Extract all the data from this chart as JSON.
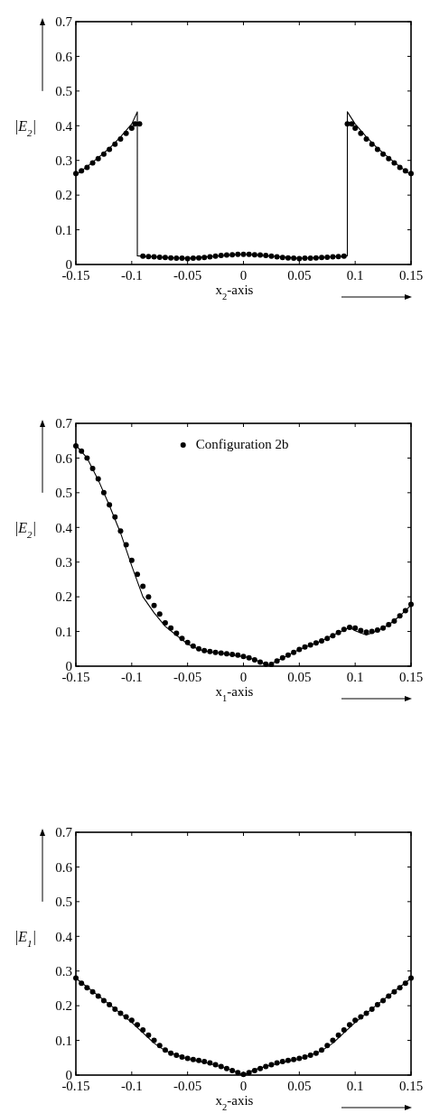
{
  "chart_data": [
    {
      "type": "line",
      "xlabel": "x$_{2}$-axis",
      "ylabel": "|E$_{2}$|",
      "xlim": [
        -0.15,
        0.15
      ],
      "ylim": [
        0,
        0.7
      ],
      "xticks": [
        -0.15,
        -0.1,
        -0.05,
        0,
        0.05,
        0.1,
        0.15
      ],
      "yticks": [
        0,
        0.1,
        0.2,
        0.3,
        0.4,
        0.5,
        0.6,
        0.7
      ],
      "grid": false,
      "legend": false,
      "series": [
        {
          "type": "line",
          "color": "#000000",
          "line_style": "solid",
          "x": [
            -0.15,
            -0.14,
            -0.13,
            -0.12,
            -0.11,
            -0.1,
            -0.095,
            -0.095,
            -0.07,
            -0.05,
            -0.025,
            0,
            0.025,
            0.05,
            0.07,
            0.093,
            0.093,
            0.1,
            0.11,
            0.12,
            0.13,
            0.14,
            0.15
          ],
          "values": [
            0.258,
            0.282,
            0.308,
            0.335,
            0.368,
            0.405,
            0.44,
            0.025,
            0.02,
            0.018,
            0.024,
            0.03,
            0.024,
            0.018,
            0.02,
            0.025,
            0.44,
            0.405,
            0.368,
            0.335,
            0.308,
            0.282,
            0.258
          ]
        },
        {
          "type": "scatter",
          "color": "#000000",
          "marker": "circle",
          "x": [
            -0.15,
            -0.145,
            -0.14,
            -0.135,
            -0.13,
            -0.125,
            -0.12,
            -0.115,
            -0.11,
            -0.105,
            -0.1,
            -0.097,
            -0.093,
            -0.09,
            -0.085,
            -0.08,
            -0.075,
            -0.07,
            -0.065,
            -0.06,
            -0.055,
            -0.05,
            -0.045,
            -0.04,
            -0.035,
            -0.03,
            -0.025,
            -0.02,
            -0.015,
            -0.01,
            -0.005,
            0,
            0.005,
            0.01,
            0.015,
            0.02,
            0.025,
            0.03,
            0.035,
            0.04,
            0.045,
            0.05,
            0.055,
            0.06,
            0.065,
            0.07,
            0.075,
            0.08,
            0.085,
            0.09,
            0.093,
            0.097,
            0.1,
            0.105,
            0.11,
            0.115,
            0.12,
            0.125,
            0.13,
            0.135,
            0.14,
            0.145,
            0.15
          ],
          "values": [
            0.262,
            0.27,
            0.28,
            0.293,
            0.305,
            0.318,
            0.332,
            0.347,
            0.362,
            0.378,
            0.393,
            0.405,
            0.405,
            0.024,
            0.023,
            0.022,
            0.021,
            0.02,
            0.019,
            0.018,
            0.018,
            0.017,
            0.018,
            0.019,
            0.02,
            0.022,
            0.024,
            0.026,
            0.027,
            0.028,
            0.029,
            0.029,
            0.029,
            0.028,
            0.027,
            0.026,
            0.024,
            0.022,
            0.02,
            0.019,
            0.018,
            0.017,
            0.018,
            0.018,
            0.019,
            0.02,
            0.021,
            0.022,
            0.023,
            0.024,
            0.405,
            0.405,
            0.393,
            0.378,
            0.362,
            0.347,
            0.332,
            0.318,
            0.305,
            0.293,
            0.28,
            0.27,
            0.262
          ]
        }
      ]
    },
    {
      "type": "line",
      "xlabel": "x$_{1}$-axis",
      "ylabel": "|E$_{2}$|",
      "xlim": [
        -0.15,
        0.15
      ],
      "ylim": [
        0,
        0.7
      ],
      "xticks": [
        -0.15,
        -0.1,
        -0.05,
        0,
        0.05,
        0.1,
        0.15
      ],
      "yticks": [
        0,
        0.1,
        0.2,
        0.3,
        0.4,
        0.5,
        0.6,
        0.7
      ],
      "grid": false,
      "legend": "top",
      "series": [
        {
          "type": "line",
          "color": "#000000",
          "line_style": "solid",
          "x": [
            -0.15,
            -0.14,
            -0.13,
            -0.12,
            -0.11,
            -0.1,
            -0.09,
            -0.08,
            -0.07,
            -0.06,
            -0.05,
            -0.04,
            -0.03,
            -0.02,
            -0.01,
            0,
            0.01,
            0.02,
            0.022,
            0.03,
            0.04,
            0.05,
            0.06,
            0.07,
            0.08,
            0.09,
            0.095,
            0.1,
            0.11,
            0.12,
            0.13,
            0.14,
            0.15
          ],
          "values": [
            0.637,
            0.6,
            0.537,
            0.463,
            0.384,
            0.289,
            0.2,
            0.154,
            0.115,
            0.089,
            0.064,
            0.048,
            0.041,
            0.037,
            0.032,
            0.028,
            0.019,
            0.006,
            0.002,
            0.015,
            0.032,
            0.048,
            0.061,
            0.073,
            0.089,
            0.104,
            0.112,
            0.102,
            0.09,
            0.102,
            0.119,
            0.145,
            0.176
          ]
        },
        {
          "type": "scatter",
          "name": "Configuration 2b",
          "color": "#000000",
          "marker": "circle",
          "x": [
            -0.15,
            -0.145,
            -0.14,
            -0.135,
            -0.13,
            -0.125,
            -0.12,
            -0.115,
            -0.11,
            -0.105,
            -0.1,
            -0.095,
            -0.09,
            -0.085,
            -0.08,
            -0.075,
            -0.07,
            -0.065,
            -0.06,
            -0.055,
            -0.05,
            -0.045,
            -0.04,
            -0.035,
            -0.03,
            -0.025,
            -0.02,
            -0.015,
            -0.01,
            -0.005,
            0,
            0.005,
            0.01,
            0.015,
            0.02,
            0.025,
            0.03,
            0.035,
            0.04,
            0.045,
            0.05,
            0.055,
            0.06,
            0.065,
            0.07,
            0.075,
            0.08,
            0.085,
            0.09,
            0.095,
            0.1,
            0.105,
            0.11,
            0.115,
            0.12,
            0.125,
            0.13,
            0.135,
            0.14,
            0.145,
            0.15
          ],
          "values": [
            0.635,
            0.62,
            0.6,
            0.57,
            0.54,
            0.5,
            0.465,
            0.43,
            0.39,
            0.35,
            0.305,
            0.265,
            0.23,
            0.2,
            0.175,
            0.15,
            0.125,
            0.11,
            0.095,
            0.08,
            0.068,
            0.058,
            0.05,
            0.045,
            0.042,
            0.04,
            0.038,
            0.036,
            0.034,
            0.032,
            0.028,
            0.024,
            0.018,
            0.012,
            0.006,
            0.005,
            0.015,
            0.024,
            0.032,
            0.04,
            0.048,
            0.055,
            0.061,
            0.067,
            0.073,
            0.08,
            0.088,
            0.097,
            0.106,
            0.112,
            0.11,
            0.103,
            0.098,
            0.1,
            0.104,
            0.11,
            0.12,
            0.13,
            0.145,
            0.16,
            0.178
          ]
        }
      ]
    },
    {
      "type": "line",
      "xlabel": "x$_{2}$-axis",
      "ylabel": "|E$_{1}$|",
      "xlim": [
        -0.15,
        0.15
      ],
      "ylim": [
        0,
        0.7
      ],
      "xticks": [
        -0.15,
        -0.1,
        -0.05,
        0,
        0.05,
        0.1,
        0.15
      ],
      "yticks": [
        0,
        0.1,
        0.2,
        0.3,
        0.4,
        0.5,
        0.6,
        0.7
      ],
      "grid": false,
      "legend": false,
      "series": [
        {
          "type": "line",
          "color": "#000000",
          "line_style": "solid",
          "x": [
            -0.15,
            -0.12,
            -0.1,
            -0.08,
            -0.07,
            -0.05,
            -0.03,
            -0.01,
            0,
            0.01,
            0.03,
            0.05,
            0.07,
            0.08,
            0.1,
            0.12,
            0.15
          ],
          "values": [
            0.279,
            0.204,
            0.152,
            0.092,
            0.07,
            0.046,
            0.033,
            0.014,
            0,
            0.016,
            0.033,
            0.046,
            0.07,
            0.092,
            0.152,
            0.204,
            0.279
          ]
        },
        {
          "type": "scatter",
          "color": "#000000",
          "marker": "circle",
          "x": [
            -0.15,
            -0.145,
            -0.14,
            -0.135,
            -0.13,
            -0.125,
            -0.12,
            -0.115,
            -0.11,
            -0.105,
            -0.1,
            -0.095,
            -0.09,
            -0.085,
            -0.08,
            -0.075,
            -0.07,
            -0.065,
            -0.06,
            -0.055,
            -0.05,
            -0.045,
            -0.04,
            -0.035,
            -0.03,
            -0.025,
            -0.02,
            -0.015,
            -0.01,
            -0.005,
            0,
            0.005,
            0.01,
            0.015,
            0.02,
            0.025,
            0.03,
            0.035,
            0.04,
            0.045,
            0.05,
            0.055,
            0.06,
            0.065,
            0.07,
            0.075,
            0.08,
            0.085,
            0.09,
            0.095,
            0.1,
            0.105,
            0.11,
            0.115,
            0.12,
            0.125,
            0.13,
            0.135,
            0.14,
            0.145,
            0.15
          ],
          "values": [
            0.28,
            0.265,
            0.252,
            0.24,
            0.228,
            0.215,
            0.203,
            0.19,
            0.178,
            0.168,
            0.158,
            0.145,
            0.13,
            0.115,
            0.1,
            0.085,
            0.072,
            0.063,
            0.057,
            0.052,
            0.048,
            0.045,
            0.042,
            0.039,
            0.035,
            0.03,
            0.025,
            0.019,
            0.013,
            0.007,
            0.002,
            0.007,
            0.013,
            0.019,
            0.025,
            0.03,
            0.035,
            0.039,
            0.042,
            0.045,
            0.048,
            0.052,
            0.057,
            0.063,
            0.072,
            0.085,
            0.1,
            0.115,
            0.13,
            0.145,
            0.158,
            0.168,
            0.178,
            0.19,
            0.203,
            0.215,
            0.228,
            0.24,
            0.252,
            0.265,
            0.28
          ]
        }
      ]
    }
  ]
}
